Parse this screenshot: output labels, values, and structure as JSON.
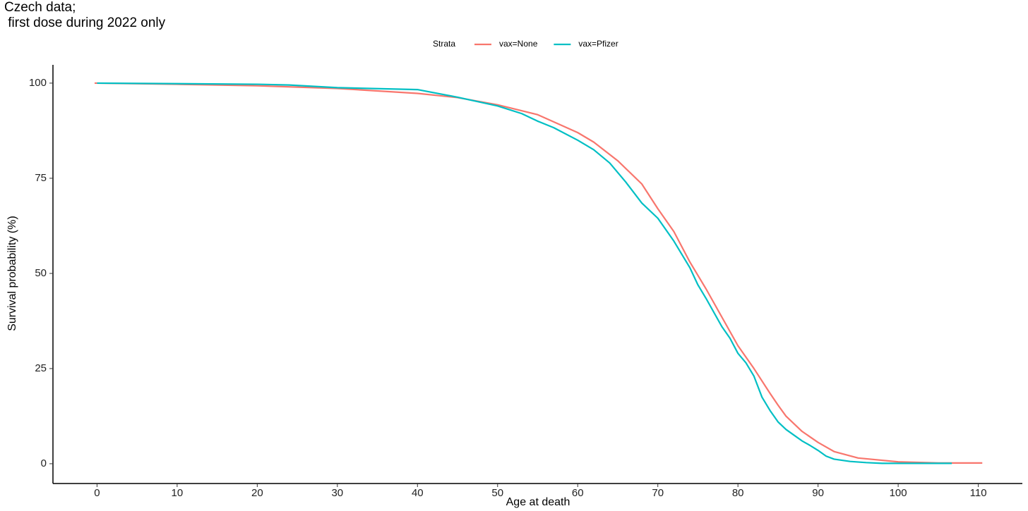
{
  "chart_data": {
    "type": "line",
    "title": "Czech data;\n first dose during 2022 only",
    "x_label": "Age at death",
    "y_label": "Survival probability (%)",
    "legend_title": "Strata",
    "legend_position": "top",
    "grid": false,
    "xlim": [
      -5.5,
      115.5
    ],
    "ylim": [
      -5.2,
      104.8
    ],
    "xticks": [
      0,
      10,
      20,
      30,
      40,
      50,
      60,
      70,
      80,
      90,
      100,
      110
    ],
    "yticks": [
      0,
      25,
      50,
      75,
      100
    ],
    "series": [
      {
        "name": "vax=None",
        "color": "#F8766D",
        "x": [
          -0.3,
          10,
          20,
          30,
          40,
          45,
          50,
          55,
          60,
          62,
          65,
          68,
          70,
          72,
          74,
          76,
          78,
          80,
          82,
          84,
          85,
          86,
          88,
          90,
          92,
          95,
          100,
          105,
          110.5
        ],
        "values": [
          100,
          99.7,
          99.3,
          98.6,
          97.3,
          96.2,
          94.3,
          91.7,
          87,
          84.5,
          79.6,
          73.5,
          67,
          61,
          53,
          46,
          38.5,
          31,
          25,
          18.5,
          15.4,
          12.5,
          8.5,
          5.6,
          3.2,
          1.5,
          0.5,
          0.2,
          0.2
        ]
      },
      {
        "name": "vax=Pfizer",
        "color": "#00BFC4",
        "x": [
          0,
          20,
          24,
          30,
          40,
          42,
          45,
          50,
          53,
          55,
          57,
          60,
          62,
          64,
          66,
          68,
          70,
          72,
          74,
          75,
          76,
          78,
          79,
          80,
          81,
          82,
          83,
          84,
          85,
          86,
          87,
          88,
          89,
          90,
          91,
          92,
          94,
          96,
          98,
          106.7
        ],
        "values": [
          100,
          99.7,
          99.5,
          98.8,
          98.3,
          97.5,
          96.3,
          94,
          92,
          90,
          88.3,
          85,
          82.5,
          79,
          74,
          68.5,
          64.5,
          58.5,
          51.5,
          47,
          43.5,
          36,
          33,
          29,
          26.5,
          23,
          17.5,
          14,
          11,
          9,
          7.5,
          6,
          4.8,
          3.5,
          2,
          1.2,
          0.6,
          0.3,
          0.1,
          0.1
        ]
      }
    ]
  }
}
